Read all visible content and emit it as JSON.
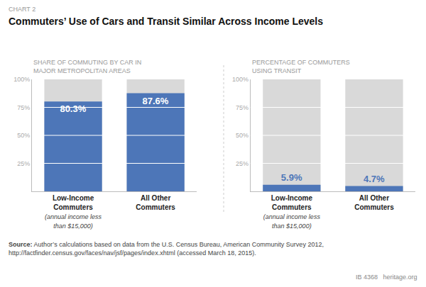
{
  "title": "Commuters’ Use of Cars and Transit Similar Across Income Levels",
  "annotations": [
    "CHART 2",
    "Source:",
    " Author’s calculations based on data from the U.S. Census Bureau, American Community Survey 2012,\nhttp://factfinder.census.gov/faces/nav/jsf/pages/index.xhtml (accessed March 18, 2015).",
    "IB 4368   heritage.org"
  ],
  "chart_data": [
    {
      "type": "bar",
      "title": "SHARE OF COMMUTING BY CAR IN\nMAJOR METROPOLITAN AREAS",
      "categories": [
        "Low-Income\nCommuters",
        "All Other\nCommuters"
      ],
      "values": [
        80.3,
        87.6
      ],
      "value_labels": [
        "80.3%",
        "87.6%"
      ],
      "data_labels": true,
      "color": "#4D76B8",
      "ylim": [
        0,
        100
      ],
      "yticks": [
        {
          "value": 25,
          "label": "25%"
        },
        {
          "value": 50,
          "label": "50%"
        },
        {
          "value": 75,
          "label": "75%"
        },
        {
          "value": 100,
          "label": "100%"
        }
      ],
      "grid": true,
      "annotations": [
        {
          "text": "(annual income less\nthan $15,000)",
          "category": "Low-Income\nCommuters"
        }
      ]
    },
    {
      "type": "bar",
      "title": "PERCENTAGE OF COMMUTERS\nUSING TRANSIT",
      "categories": [
        "Low-Income\nCommuters",
        "All Other\nCommuters"
      ],
      "values": [
        5.9,
        4.7
      ],
      "value_labels": [
        "5.9%",
        "4.7%"
      ],
      "data_labels": true,
      "color": "#4D76B8",
      "ylim": [
        0,
        100
      ],
      "yticks": [
        {
          "value": 25,
          "label": "25%"
        },
        {
          "value": 50,
          "label": "50%"
        },
        {
          "value": 75,
          "label": "75%"
        },
        {
          "value": 100,
          "label": "100%"
        }
      ],
      "grid": true,
      "annotations": [
        {
          "text": "(annual income less\nthan $15,000)",
          "category": "Low-Income\nCommuters"
        }
      ]
    }
  ]
}
